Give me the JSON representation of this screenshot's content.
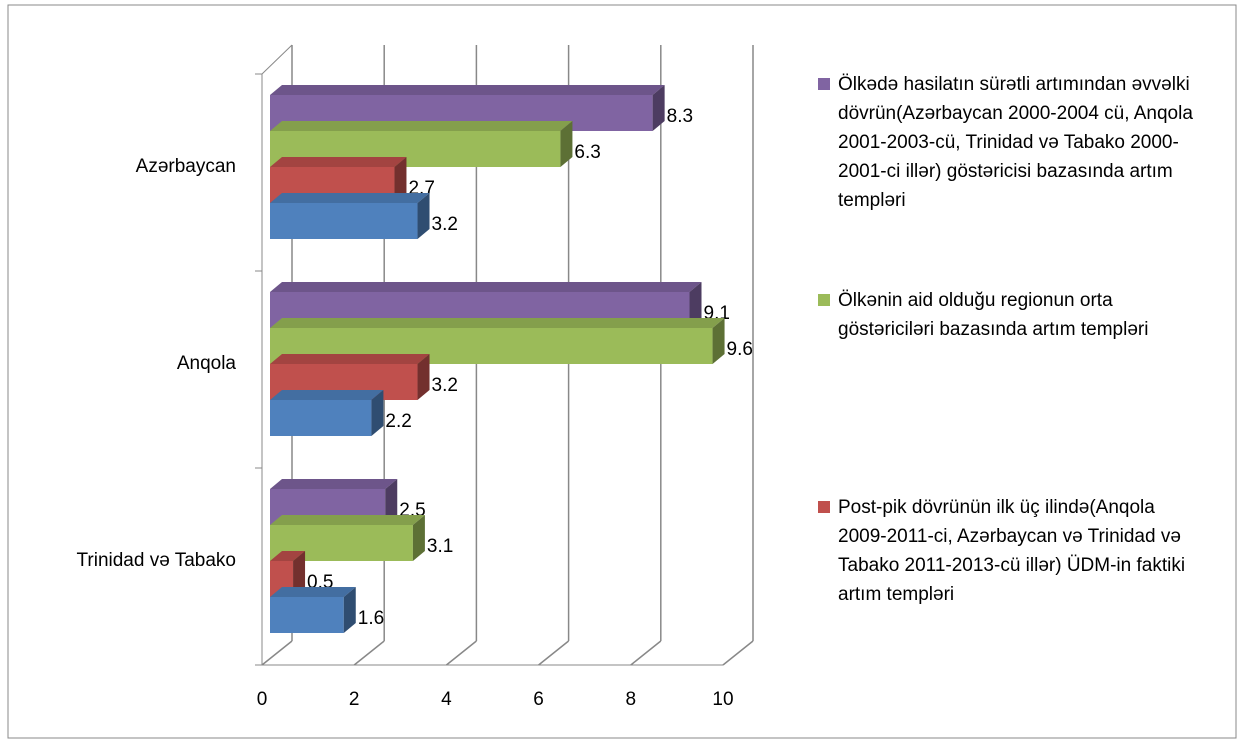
{
  "chart_data": {
    "type": "bar3d_horizontal",
    "categories": [
      "Azərbaycan",
      "Anqola",
      "Trinidad və Tabako"
    ],
    "series": [
      {
        "name": "Ölkədə hasilatın sürətli artımından əvvəlki dövrün(Azərbaycan 2000-2004 cü, Anqola 2001-2003-cü, Trinidad və Tabako 2000-2001-ci illər)  göstəricisi bazasında artım templəri",
        "color": "#8064a2",
        "values": [
          8.3,
          9.1,
          2.5
        ]
      },
      {
        "name": "Ölkənin aid olduğu regionun orta göstəriciləri bazasında artım templəri",
        "color": "#9bbb59",
        "values": [
          6.3,
          9.6,
          3.1
        ]
      },
      {
        "name": "Post-pik dövrünün ilk üç ilində(Anqola 2009-2011-ci, Azərbaycan və Trinidad və Tabako 2011-2013-cü illər) ÜDM-in faktiki artım templəri",
        "color": "#c0504d",
        "values": [
          2.7,
          3.2,
          0.5
        ]
      },
      {
        "name": null,
        "color": "#4f81bd",
        "values": [
          3.2,
          2.2,
          1.6
        ]
      }
    ],
    "xlim": [
      0,
      10
    ],
    "xticks": [
      0,
      2,
      4,
      6,
      8,
      10
    ],
    "grid": true,
    "legend": "right"
  }
}
